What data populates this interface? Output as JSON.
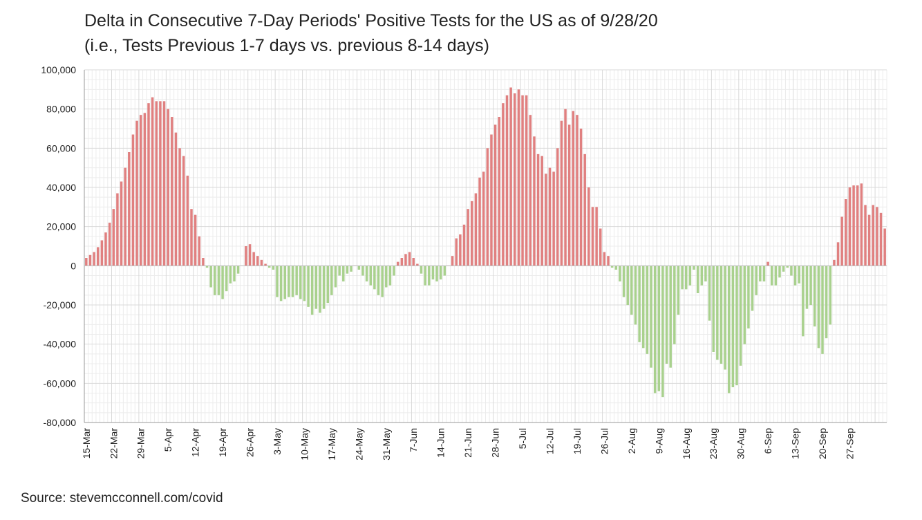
{
  "title_line1": "Delta in Consecutive 7-Day Periods' Positive Tests for the US as of 9/28/20",
  "title_line2": "(i.e., Tests Previous 1-7 days vs. previous 8-14 days)",
  "source": "Source: stevemcconnell.com/covid",
  "colors": {
    "positive": "#e08080",
    "negative": "#a9d18e",
    "grid": "#d9d9d9",
    "grid_minor": "#ececec",
    "axis": "#999999"
  },
  "chart_data": {
    "type": "bar",
    "title": "Delta in Consecutive 7-Day Periods' Positive Tests for the US as of 9/28/20",
    "subtitle": "(i.e., Tests Previous 1-7 days vs. previous 8-14 days)",
    "xlabel": "",
    "ylabel": "",
    "ylim": [
      -80000,
      100000
    ],
    "yticks": [
      100000,
      80000,
      60000,
      40000,
      20000,
      0,
      -20000,
      -40000,
      -60000,
      -80000
    ],
    "ytick_labels": [
      "100,000",
      "80,000",
      "60,000",
      "40,000",
      "20,000",
      "0",
      "-20,000",
      "-40,000",
      "-60,000",
      "-80,000"
    ],
    "grid": true,
    "start_date": "15-Mar",
    "xtick_labels": [
      "15-Mar",
      "22-Mar",
      "29-Mar",
      "5-Apr",
      "12-Apr",
      "19-Apr",
      "26-Apr",
      "3-May",
      "10-May",
      "17-May",
      "24-May",
      "31-May",
      "7-Jun",
      "14-Jun",
      "21-Jun",
      "28-Jun",
      "5-Jul",
      "12-Jul",
      "19-Jul",
      "26-Jul",
      "2-Aug",
      "9-Aug",
      "16-Aug",
      "23-Aug",
      "30-Aug",
      "6-Sep",
      "13-Sep",
      "20-Sep",
      "27-Sep"
    ],
    "xtick_every_days": 7,
    "values": [
      4000,
      5500,
      7000,
      9500,
      13000,
      17000,
      22000,
      29000,
      37000,
      43000,
      50000,
      58000,
      67000,
      74000,
      77000,
      78000,
      83000,
      86000,
      84000,
      84000,
      84000,
      80000,
      76000,
      68000,
      60000,
      56000,
      46000,
      29000,
      26000,
      15000,
      4000,
      -1000,
      -11000,
      -15000,
      -15000,
      -17000,
      -13000,
      -9000,
      -8000,
      -4000,
      0,
      10000,
      11000,
      7000,
      5000,
      3000,
      1000,
      -1000,
      -2000,
      -16000,
      -18000,
      -17000,
      -16000,
      -16000,
      -15000,
      -17000,
      -18000,
      -21000,
      -25000,
      -22000,
      -24000,
      -22000,
      -19000,
      -15000,
      -11000,
      -5000,
      -8000,
      -4000,
      -3000,
      0,
      -2000,
      -5000,
      -8000,
      -10000,
      -12000,
      -15000,
      -16000,
      -11000,
      -10000,
      -5000,
      2000,
      4000,
      6000,
      7000,
      4000,
      1000,
      -4000,
      -10000,
      -10000,
      -7000,
      -8000,
      -7000,
      -5000,
      0,
      5000,
      14000,
      16000,
      21000,
      29000,
      33000,
      37000,
      45000,
      48000,
      60000,
      67000,
      72000,
      76000,
      83000,
      87000,
      91000,
      88000,
      90000,
      87000,
      87000,
      77000,
      66000,
      57000,
      56000,
      47000,
      50000,
      48000,
      60000,
      74000,
      80000,
      72000,
      79000,
      77000,
      70000,
      57000,
      40000,
      30000,
      30000,
      19000,
      7000,
      5000,
      -1000,
      -2000,
      -8000,
      -16000,
      -20000,
      -25000,
      -30000,
      -39000,
      -42000,
      -45000,
      -52000,
      -65000,
      -64000,
      -67000,
      -50000,
      -52000,
      -40000,
      -25000,
      -12000,
      -12000,
      -10000,
      -2000,
      -14000,
      -10000,
      -8000,
      -28000,
      -44000,
      -48000,
      -50000,
      -53000,
      -65000,
      -62000,
      -61000,
      -51000,
      -40000,
      -32000,
      -23000,
      -15000,
      -8000,
      -8000,
      2000,
      -10000,
      -10000,
      -6000,
      -3000,
      -1000,
      -5000,
      -10000,
      -9000,
      -36000,
      -22000,
      -20000,
      -31000,
      -42000,
      -45000,
      -37000,
      -30000,
      3000,
      12000,
      25000,
      34000,
      40000,
      41000,
      41000,
      42000,
      31000,
      26000,
      31000,
      30000,
      27000,
      19000
    ]
  }
}
